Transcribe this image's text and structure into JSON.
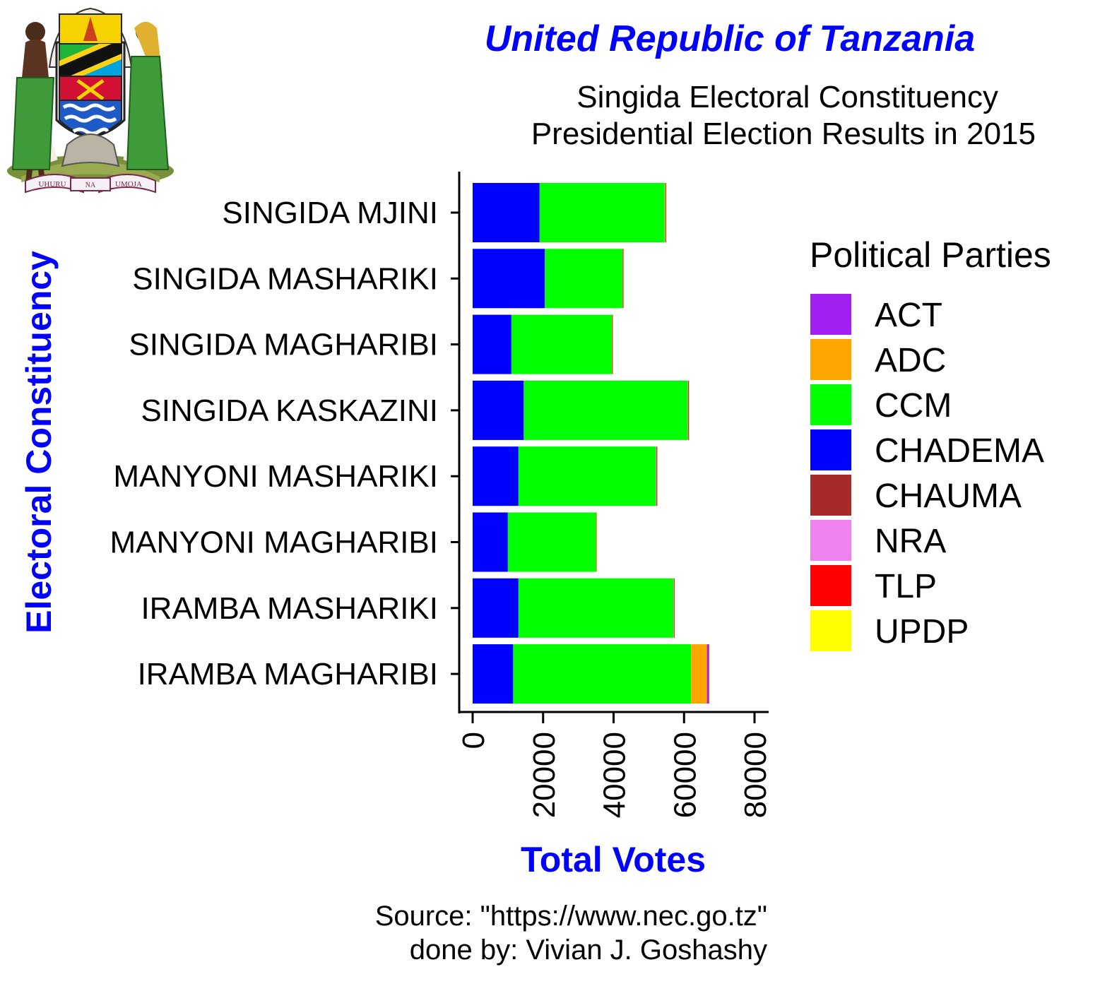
{
  "emblem": {
    "motto_left": "UHURU",
    "motto_middle": "NA",
    "motto_right": "UMOJA"
  },
  "chart_data": {
    "type": "bar",
    "orientation": "horizontal",
    "stacked": true,
    "title": "United Republic of Tanzania",
    "subtitle_lines": [
      "Singida Electoral Constituency",
      "Presidential Election Results in 2015"
    ],
    "xlabel": "Total Votes",
    "ylabel": "Electoral Constituency",
    "xlim": [
      0,
      80000
    ],
    "xticks": [
      0,
      20000,
      40000,
      60000,
      80000
    ],
    "x_tick_labels": [
      "0",
      "20000",
      "40000",
      "60000",
      "80000"
    ],
    "categories": [
      "SINGIDA MJINI",
      "SINGIDA MASHARIKI",
      "SINGIDA MAGHARIBI",
      "SINGIDA KASKAZINI",
      "MANYONI MASHARIKI",
      "MANYONI MAGHARIBI",
      "IRAMBA MASHARIKI",
      "IRAMBA MAGHARIBI"
    ],
    "series": [
      {
        "name": "CHADEMA",
        "color": "#0000ff",
        "values": [
          19000,
          20500,
          11000,
          14500,
          13000,
          10000,
          13000,
          11500
        ]
      },
      {
        "name": "CCM",
        "color": "#00ff00",
        "values": [
          35500,
          22000,
          28500,
          46500,
          39000,
          25000,
          44000,
          50500
        ]
      },
      {
        "name": "ADC",
        "color": "#ffa500",
        "values": [
          200,
          100,
          100,
          100,
          100,
          50,
          100,
          4500
        ]
      },
      {
        "name": "ACT",
        "color": "#a020f0",
        "values": [
          150,
          150,
          100,
          150,
          200,
          50,
          150,
          500
        ]
      },
      {
        "name": "CHAUMA",
        "color": "#a52a2a",
        "values": [
          50,
          50,
          50,
          100,
          50,
          50,
          50,
          100
        ]
      },
      {
        "name": "NRA",
        "color": "#ee82ee",
        "values": [
          20,
          20,
          20,
          20,
          20,
          20,
          20,
          30
        ]
      },
      {
        "name": "TLP",
        "color": "#ff0000",
        "values": [
          20,
          20,
          20,
          20,
          20,
          20,
          20,
          30
        ]
      },
      {
        "name": "UPDP",
        "color": "#ffff00",
        "values": [
          20,
          20,
          20,
          20,
          20,
          20,
          20,
          30
        ]
      }
    ],
    "legend": {
      "title": "Political Parties",
      "position": "right",
      "items": [
        {
          "name": "ACT",
          "color": "#a020f0"
        },
        {
          "name": "ADC",
          "color": "#ffa500"
        },
        {
          "name": "CCM",
          "color": "#00ff00"
        },
        {
          "name": "CHADEMA",
          "color": "#0000ff"
        },
        {
          "name": "CHAUMA",
          "color": "#a52a2a"
        },
        {
          "name": "NRA",
          "color": "#ee82ee"
        },
        {
          "name": "TLP",
          "color": "#ff0000"
        },
        {
          "name": "UPDP",
          "color": "#ffff00"
        }
      ]
    },
    "caption_lines": [
      "Source: \"https://www.nec.go.tz\"",
      "done by: Vivian J. Goshashy"
    ],
    "title_color": "#0000ff",
    "axis_title_color": "#0000ff"
  }
}
